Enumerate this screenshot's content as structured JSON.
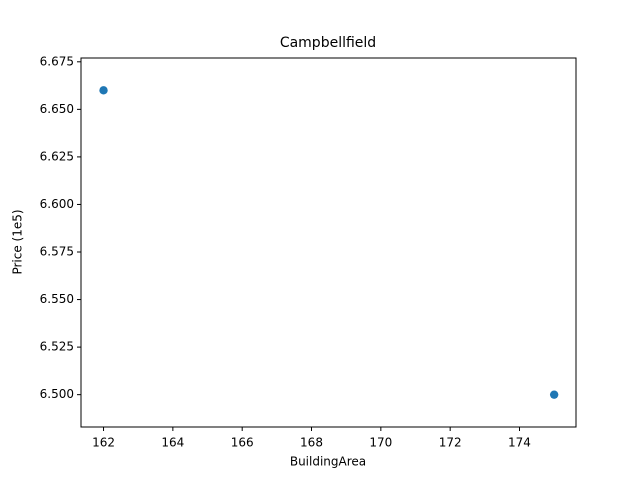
{
  "chart_data": {
    "type": "scatter",
    "title": "Campbellfield",
    "x_label": "BuildingArea",
    "y_label": "Price (1e5)",
    "x": [
      162,
      175
    ],
    "values": [
      6.66,
      6.5
    ],
    "color": "#1f77b4",
    "xlim": [
      161.35,
      175.63
    ],
    "ylim": [
      6.483,
      6.677
    ],
    "xticks": [
      162,
      164,
      166,
      168,
      170,
      172,
      174
    ],
    "yticks": [
      {
        "value": 6.5,
        "label": "6.500"
      },
      6.525,
      {
        "value": 6.55,
        "label": "6.550"
      },
      6.575,
      {
        "value": 6.6,
        "label": "6.600"
      },
      6.625,
      {
        "value": 6.65,
        "label": "6.650"
      },
      6.675
    ],
    "grid": false
  }
}
